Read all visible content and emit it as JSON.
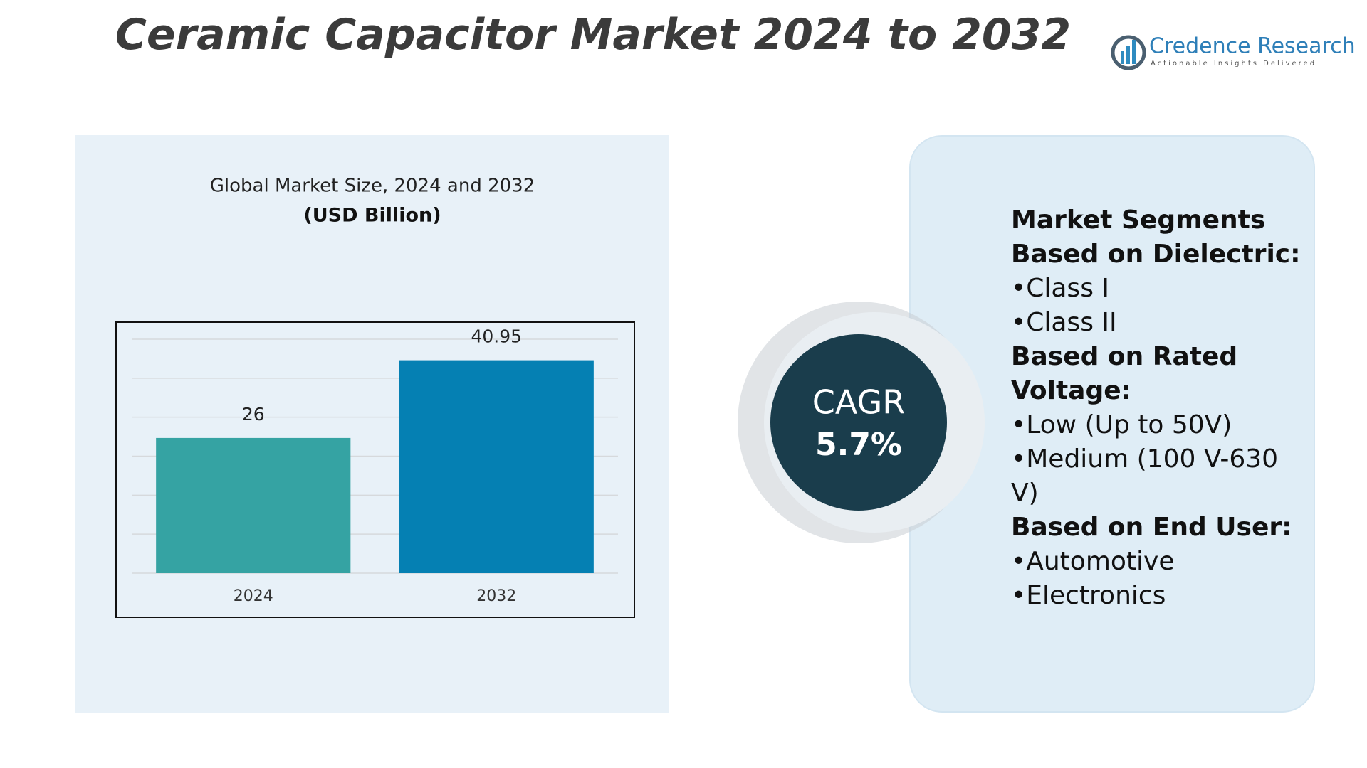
{
  "title": "Ceramic Capacitor Market 2024 to 2032",
  "brand": {
    "name": "Credence Research",
    "tagline": "Actionable Insights Delivered"
  },
  "chart_data": {
    "type": "bar",
    "title": "Global Market Size, 2024 and 2032",
    "subtitle": "(USD Billion)",
    "categories": [
      "2024",
      "2032"
    ],
    "values": [
      26,
      40.95
    ],
    "colors": [
      "#35a3a3",
      "#0580b3"
    ],
    "ylim": [
      0,
      45
    ],
    "yticks": [
      0,
      7.5,
      15,
      22.5,
      30,
      37.5,
      45
    ],
    "grid": true
  },
  "cagr": {
    "label": "CAGR",
    "value": "5.7%"
  },
  "segments": {
    "heading": "Market Segments",
    "groups": [
      {
        "title": "Based on Dielectric:",
        "items": [
          "•Class I",
          "•Class II"
        ]
      },
      {
        "title": "Based on Rated Voltage:",
        "items": [
          "•Low (Up to 50V)",
          "•Medium (100 V-630 V)"
        ]
      },
      {
        "title": "Based on End User:",
        "items": [
          "•Automotive",
          "•Electronics"
        ]
      }
    ]
  }
}
